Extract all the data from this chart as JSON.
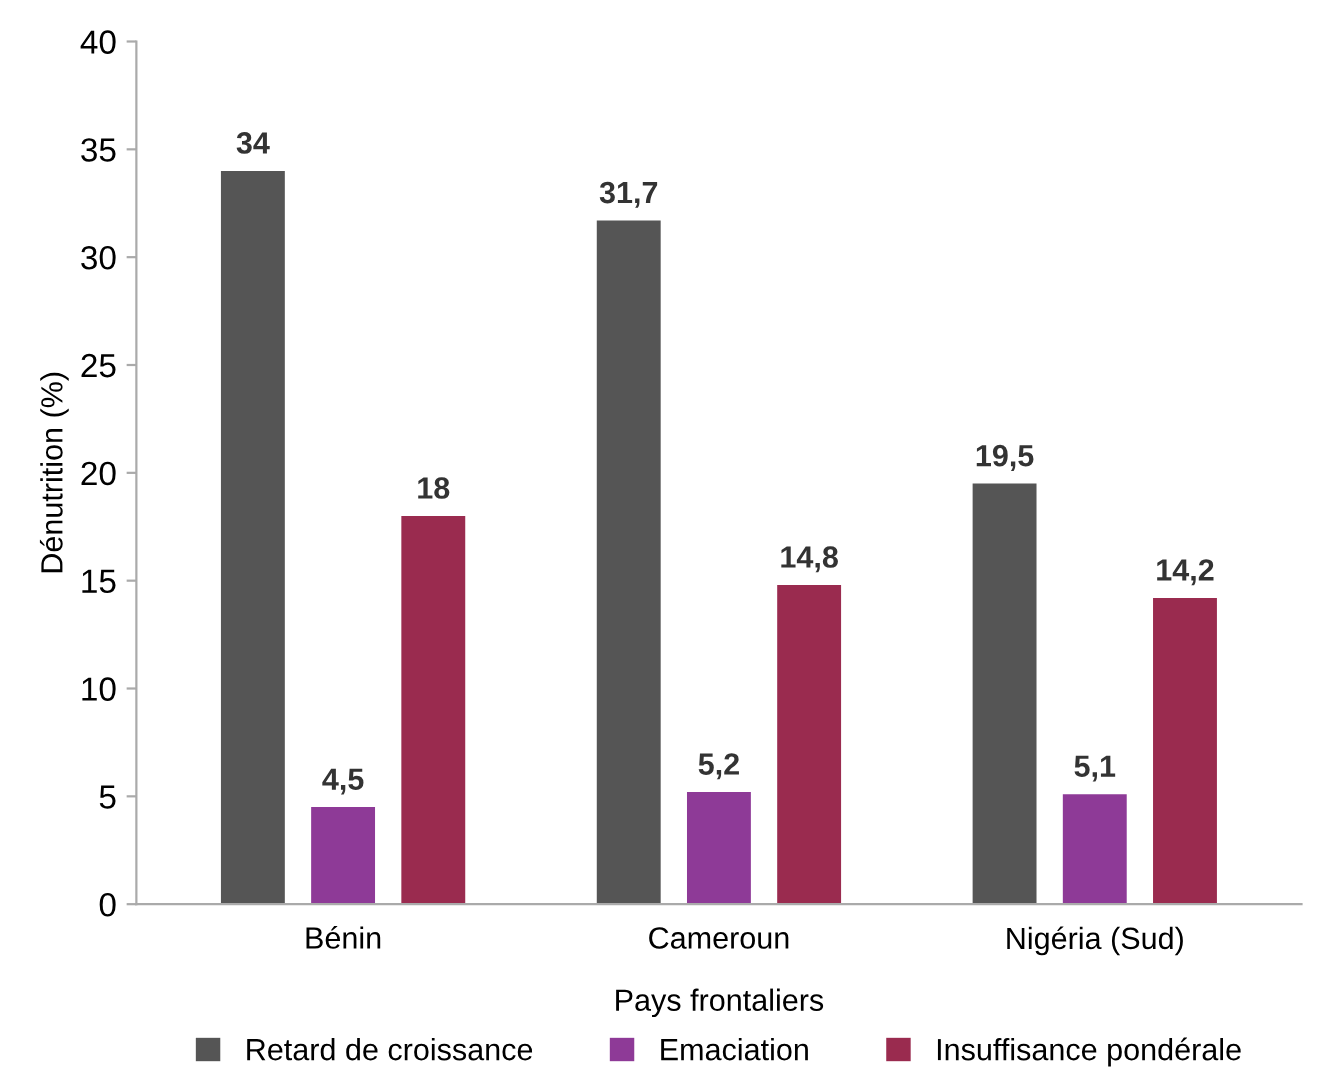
{
  "chart_data": {
    "type": "bar",
    "xlabel": "Pays frontaliers",
    "ylabel": "Dénutrition (%)",
    "categories": [
      "Bénin",
      "Cameroun",
      "Nigéria (Sud)"
    ],
    "series": [
      {
        "name": "Retard de croissance",
        "color": "#555555",
        "values": [
          34,
          31.7,
          19.5
        ],
        "value_labels": [
          "34",
          "31,7",
          "19,5"
        ]
      },
      {
        "name": "Emaciation",
        "color": "#8e3a97",
        "values": [
          4.5,
          5.2,
          5.1
        ],
        "value_labels": [
          "4,5",
          "5,2",
          "5,1"
        ]
      },
      {
        "name": "Insuffisance pondérale",
        "color": "#9a2b4f",
        "values": [
          18,
          14.8,
          14.2
        ],
        "value_labels": [
          "18",
          "14,8",
          "14,2"
        ]
      }
    ],
    "ylim": [
      0,
      40
    ],
    "yticks": [
      0,
      5,
      10,
      15,
      20,
      25,
      30,
      35,
      40
    ],
    "grid": false,
    "legend": "bottom"
  }
}
